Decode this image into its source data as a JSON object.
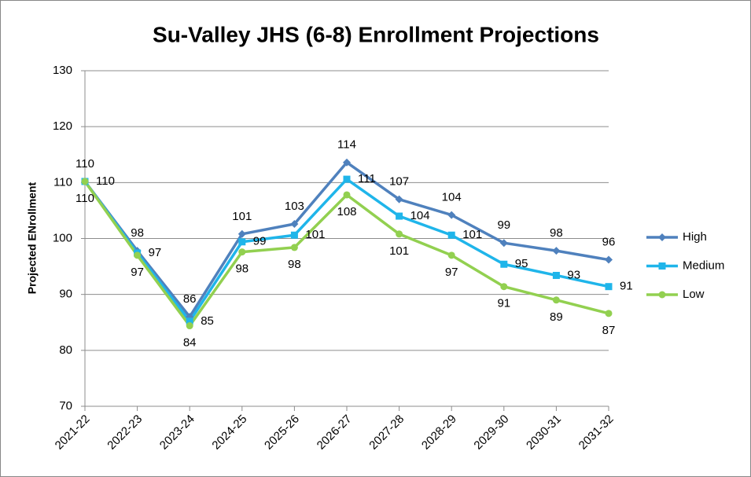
{
  "chart_data": {
    "type": "line",
    "title": "Su-Valley JHS (6-8) Enrollment Projections",
    "y_label": "Projected ENrollment",
    "categories": [
      "2021-22",
      "2022-23",
      "2023-24",
      "2024-25",
      "2025-26",
      "2026-27",
      "2027-28",
      "2028-29",
      "2029-30",
      "2030-31",
      "2031-32"
    ],
    "series": [
      {
        "name": "High",
        "color": "#4f81bd",
        "marker": "diamond",
        "values": [
          110.2,
          97.8,
          86,
          100.8,
          102.6,
          113.6,
          107,
          104.2,
          99.2,
          97.8,
          96.2
        ],
        "value_labels": [
          "110",
          "98",
          "86",
          "101",
          "103",
          "114",
          "107",
          "104",
          "99",
          "98",
          "96"
        ]
      },
      {
        "name": "Medium",
        "color": "#1fb5ea",
        "marker": "square",
        "values": [
          110.2,
          97.4,
          85.2,
          99.4,
          100.6,
          110.6,
          104,
          100.6,
          95.4,
          93.4,
          91.4
        ],
        "value_labels": [
          "110",
          "97",
          "85",
          "99",
          "101",
          "111",
          "104",
          "101",
          "95",
          "93",
          "91"
        ]
      },
      {
        "name": "Low",
        "color": "#92d050",
        "marker": "circle",
        "values": [
          110.2,
          97,
          84.4,
          97.6,
          98.4,
          107.8,
          100.8,
          97,
          91.4,
          89,
          86.6
        ],
        "value_labels": [
          "110",
          "97",
          "84",
          "98",
          "98",
          "108",
          "101",
          "97",
          "91",
          "89",
          "87"
        ]
      }
    ],
    "ylim": [
      70,
      130
    ],
    "yticks": [
      70,
      80,
      90,
      100,
      110,
      120,
      130
    ],
    "grid": true,
    "legend": "right"
  }
}
